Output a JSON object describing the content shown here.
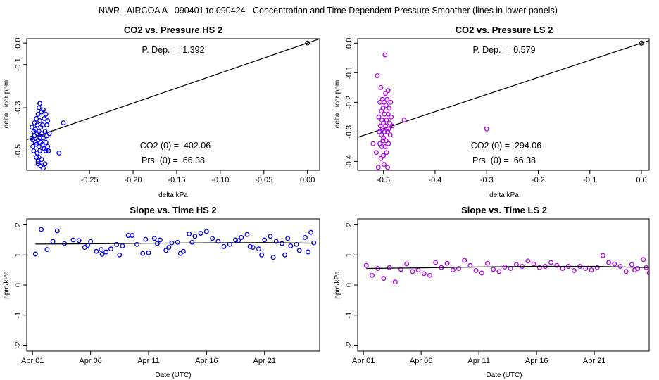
{
  "figure_title": "NWR   AIRCOA A   090401 to 090424   Concentration and Time Dependent Pressure Smoother (lines in lower panels)",
  "colors": {
    "hs": "#0000ee",
    "ls": "#b000ee",
    "line": "#000000"
  },
  "panels": {
    "hs_pressure": {
      "title": "CO2 vs. Pressure HS 2",
      "xlabel": "delta kPa",
      "ylabel": "delta Licor ppm",
      "p_dep": "P. Dep. =  1.392",
      "co2_0": "CO2 (0) =  402.06",
      "prs_0": "Prs. (0) =  66.38",
      "xticks": [
        "-0.25",
        "-0.20",
        "-0.15",
        "-0.10",
        "-0.05",
        "0.00"
      ],
      "yticks": [
        "0.0",
        "-0.1",
        "-0.3",
        "-0.5"
      ]
    },
    "ls_pressure": {
      "title": "CO2 vs. Pressure LS 2",
      "xlabel": "delta kPa",
      "ylabel": "delta Licor ppm",
      "p_dep": "P. Dep. =  0.579",
      "co2_0": "CO2 (0) =  294.06",
      "prs_0": "Prs. (0) =  66.38",
      "xticks": [
        "-0.5",
        "-0.4",
        "-0.3",
        "-0.2",
        "-0.1",
        "0.0"
      ],
      "yticks": [
        "0.0",
        "-0.1",
        "-0.2",
        "-0.3",
        "-0.4"
      ]
    },
    "hs_slope": {
      "title": "Slope vs. Time HS 2",
      "xlabel": "Date (UTC)",
      "ylabel": "ppm/kPa",
      "xticks": [
        "Apr 01",
        "Apr 06",
        "Apr 11",
        "Apr 16",
        "Apr 21"
      ],
      "yticks": [
        "-2",
        "-1",
        "0",
        "1",
        "2"
      ]
    },
    "ls_slope": {
      "title": "Slope vs. Time LS 2",
      "xlabel": "Date (UTC)",
      "ylabel": "ppm/kPa",
      "xticks": [
        "Apr 01",
        "Apr 06",
        "Apr 11",
        "Apr 16",
        "Apr 21"
      ],
      "yticks": [
        "-2",
        "-1",
        "0",
        "1",
        "2"
      ]
    }
  },
  "chart_data": [
    {
      "type": "scatter",
      "title": "CO2 vs. Pressure HS 2",
      "xlabel": "delta kPa",
      "ylabel": "delta Licor ppm",
      "xlim": [
        -0.322,
        0.014
      ],
      "ylim": [
        -0.59,
        0.02
      ],
      "points": [
        [
          -0.316,
          -0.44
        ],
        [
          -0.316,
          -0.39
        ],
        [
          -0.315,
          -0.48
        ],
        [
          -0.315,
          -0.45
        ],
        [
          -0.314,
          -0.41
        ],
        [
          -0.314,
          -0.5
        ],
        [
          -0.313,
          -0.37
        ],
        [
          -0.313,
          -0.43
        ],
        [
          -0.312,
          -0.46
        ],
        [
          -0.312,
          -0.4
        ],
        [
          -0.311,
          -0.35
        ],
        [
          -0.311,
          -0.47
        ],
        [
          -0.311,
          -0.53
        ],
        [
          -0.31,
          -0.42
        ],
        [
          -0.31,
          -0.38
        ],
        [
          -0.31,
          -0.51
        ],
        [
          -0.309,
          -0.55
        ],
        [
          -0.309,
          -0.33
        ],
        [
          -0.309,
          -0.45
        ],
        [
          -0.309,
          -0.56
        ],
        [
          -0.308,
          -0.3
        ],
        [
          -0.308,
          -0.41
        ],
        [
          -0.308,
          -0.48
        ],
        [
          -0.308,
          -0.53
        ],
        [
          -0.307,
          -0.28
        ],
        [
          -0.307,
          -0.36
        ],
        [
          -0.307,
          -0.44
        ],
        [
          -0.307,
          -0.5
        ],
        [
          -0.306,
          -0.57
        ],
        [
          -0.306,
          -0.39
        ],
        [
          -0.306,
          -0.46
        ],
        [
          -0.305,
          -0.32
        ],
        [
          -0.305,
          -0.42
        ],
        [
          -0.305,
          -0.54
        ],
        [
          -0.304,
          -0.47
        ],
        [
          -0.304,
          -0.38
        ],
        [
          -0.303,
          -0.31
        ],
        [
          -0.303,
          -0.44
        ],
        [
          -0.303,
          -0.58
        ],
        [
          -0.302,
          -0.49
        ],
        [
          -0.302,
          -0.35
        ],
        [
          -0.301,
          -0.41
        ],
        [
          -0.301,
          -0.56
        ],
        [
          -0.3,
          -0.33
        ],
        [
          -0.3,
          -0.46
        ],
        [
          -0.3,
          -0.5
        ],
        [
          -0.299,
          -0.38
        ],
        [
          -0.299,
          -0.43
        ],
        [
          -0.298,
          -0.48
        ],
        [
          -0.298,
          -0.36
        ],
        [
          -0.297,
          -0.5
        ],
        [
          -0.296,
          -0.42
        ],
        [
          -0.285,
          -0.51
        ],
        [
          -0.28,
          -0.37
        ]
      ],
      "fit_line": {
        "slope": 1.392,
        "intercept": 0
      },
      "reference_point": [
        0,
        0
      ],
      "annotations": [
        "P. Dep. =  1.392",
        "CO2 (0) =  402.06",
        "Prs. (0) =  66.38"
      ]
    },
    {
      "type": "scatter",
      "title": "CO2 vs. Pressure LS 2",
      "xlabel": "delta kPa",
      "ylabel": "delta Licor ppm",
      "xlim": [
        -0.55,
        0.015
      ],
      "ylim": [
        -0.43,
        0.015
      ],
      "points": [
        [
          -0.52,
          -0.34
        ],
        [
          -0.514,
          -0.37
        ],
        [
          -0.512,
          -0.11
        ],
        [
          -0.51,
          -0.42
        ],
        [
          -0.509,
          -0.25
        ],
        [
          -0.508,
          -0.3
        ],
        [
          -0.507,
          -0.2
        ],
        [
          -0.507,
          -0.34
        ],
        [
          -0.506,
          -0.28
        ],
        [
          -0.505,
          -0.15
        ],
        [
          -0.505,
          -0.39
        ],
        [
          -0.504,
          -0.23
        ],
        [
          -0.504,
          -0.31
        ],
        [
          -0.503,
          -0.26
        ],
        [
          -0.503,
          -0.35
        ],
        [
          -0.502,
          -0.19
        ],
        [
          -0.502,
          -0.29
        ],
        [
          -0.501,
          -0.33
        ],
        [
          -0.501,
          -0.22
        ],
        [
          -0.5,
          -0.27
        ],
        [
          -0.5,
          -0.32
        ],
        [
          -0.5,
          -0.38
        ],
        [
          -0.499,
          -0.2
        ],
        [
          -0.499,
          -0.41
        ],
        [
          -0.498,
          -0.24
        ],
        [
          -0.498,
          -0.3
        ],
        [
          -0.497,
          -0.04
        ],
        [
          -0.497,
          -0.35
        ],
        [
          -0.496,
          -0.17
        ],
        [
          -0.496,
          -0.28
        ],
        [
          -0.495,
          -0.21
        ],
        [
          -0.495,
          -0.33
        ],
        [
          -0.494,
          -0.26
        ],
        [
          -0.494,
          -0.37
        ],
        [
          -0.493,
          -0.19
        ],
        [
          -0.492,
          -0.3
        ],
        [
          -0.492,
          -0.42
        ],
        [
          -0.491,
          -0.16
        ],
        [
          -0.491,
          -0.24
        ],
        [
          -0.49,
          -0.29
        ],
        [
          -0.49,
          -0.34
        ],
        [
          -0.489,
          -0.22
        ],
        [
          -0.488,
          -0.27
        ],
        [
          -0.487,
          -0.31
        ],
        [
          -0.486,
          -0.2
        ],
        [
          -0.485,
          -0.25
        ],
        [
          -0.483,
          -0.28
        ],
        [
          -0.46,
          -0.26
        ],
        [
          -0.3,
          -0.29
        ]
      ],
      "fit_line": {
        "slope": 0.579,
        "intercept": 0
      },
      "reference_point": [
        0,
        0
      ],
      "annotations": [
        "P. Dep. =  0.579",
        "CO2 (0) =  294.06",
        "Prs. (0) =  66.38"
      ]
    },
    {
      "type": "scatter",
      "title": "Slope vs. Time HS 2",
      "xlabel": "Date (UTC)",
      "ylabel": "ppm/kPa",
      "x_axis": "date",
      "x_ticks": [
        "Apr 01",
        "Apr 06",
        "Apr 11",
        "Apr 16",
        "Apr 21"
      ],
      "xlim": [
        "2009-03-31 12:00",
        "2009-04-25 18:00"
      ],
      "ylim": [
        -2.2,
        2.2
      ],
      "points": [
        [
          "2009-04-01 06:00",
          1.03
        ],
        [
          "2009-04-01 18:00",
          1.85
        ],
        [
          "2009-04-02 06:00",
          1.18
        ],
        [
          "2009-04-02 18:00",
          1.45
        ],
        [
          "2009-04-03 03:00",
          1.8
        ],
        [
          "2009-04-03 18:00",
          1.38
        ],
        [
          "2009-04-04 12:00",
          1.5
        ],
        [
          "2009-04-05 00:00",
          1.48
        ],
        [
          "2009-04-05 12:00",
          1.25
        ],
        [
          "2009-04-06 00:00",
          1.45
        ],
        [
          "2009-04-06 12:00",
          1.12
        ],
        [
          "2009-04-06 22:00",
          1.18
        ],
        [
          "2009-04-07 08:00",
          1.1
        ],
        [
          "2009-04-07 18:00",
          1.2
        ],
        [
          "2009-04-08 06:00",
          1.35
        ],
        [
          "2009-04-08 18:00",
          1.3
        ],
        [
          "2009-04-09 06:00",
          1.65
        ],
        [
          "2009-04-09 14:00",
          1.65
        ],
        [
          "2009-04-10 00:00",
          1.35
        ],
        [
          "2009-04-10 12:00",
          1.05
        ],
        [
          "2009-04-11 00:00",
          1.07
        ],
        [
          "2009-04-11 12:00",
          1.55
        ],
        [
          "2009-04-12 00:00",
          1.5
        ],
        [
          "2009-04-12 12:00",
          1.15
        ],
        [
          "2009-04-13 00:00",
          1.4
        ],
        [
          "2009-04-13 12:00",
          1.42
        ],
        [
          "2009-04-14 00:00",
          1.12
        ],
        [
          "2009-04-14 12:00",
          1.7
        ],
        [
          "2009-04-15 00:00",
          1.62
        ],
        [
          "2009-04-15 12:00",
          1.72
        ],
        [
          "2009-04-16 00:00",
          1.78
        ],
        [
          "2009-04-16 12:00",
          1.55
        ],
        [
          "2009-04-17 00:00",
          1.45
        ],
        [
          "2009-04-17 12:00",
          1.28
        ],
        [
          "2009-04-18 00:00",
          1.35
        ],
        [
          "2009-04-18 12:00",
          1.5
        ],
        [
          "2009-04-19 00:00",
          1.58
        ],
        [
          "2009-04-19 12:00",
          1.68
        ],
        [
          "2009-04-20 00:00",
          1.25
        ],
        [
          "2009-04-20 12:00",
          1.2
        ],
        [
          "2009-04-21 00:00",
          1.5
        ],
        [
          "2009-04-21 12:00",
          1.62
        ],
        [
          "2009-04-22 00:00",
          1.45
        ],
        [
          "2009-04-22 12:00",
          1.38
        ],
        [
          "2009-04-23 00:00",
          1.55
        ],
        [
          "2009-04-23 18:00",
          1.35
        ],
        [
          "2009-04-24 12:00",
          1.58
        ],
        [
          "2009-04-25 06:00",
          1.4
        ],
        [
          "2009-04-19 18:00",
          1.28
        ],
        [
          "2009-04-18 18:00",
          1.48
        ],
        [
          "2009-04-14 18:00",
          1.42
        ],
        [
          "2009-04-13 18:00",
          1.05
        ],
        [
          "2009-04-12 18:00",
          1.25
        ],
        [
          "2009-04-11 18:00",
          1.38
        ],
        [
          "2009-04-10 18:00",
          1.52
        ],
        [
          "2009-04-08 12:00",
          1.0
        ],
        [
          "2009-04-07 00:00",
          1.02
        ],
        [
          "2009-04-05 18:00",
          1.32
        ],
        [
          "2009-04-22 18:00",
          1.0
        ],
        [
          "2009-04-23 06:00",
          1.3
        ],
        [
          "2009-04-24 00:00",
          1.15
        ],
        [
          "2009-04-24 18:00",
          1.1
        ],
        [
          "2009-04-25 00:00",
          1.75
        ],
        [
          "2009-04-21 18:00",
          0.92
        ],
        [
          "2009-04-20 18:00",
          1.0
        ]
      ],
      "smoother": [
        [
          "2009-04-01 06:00",
          1.36
        ],
        [
          "2009-04-06 00:00",
          1.37
        ],
        [
          "2009-04-11 00:00",
          1.39
        ],
        [
          "2009-04-16 00:00",
          1.4
        ],
        [
          "2009-04-21 00:00",
          1.41
        ],
        [
          "2009-04-25 06:00",
          1.39
        ]
      ]
    },
    {
      "type": "scatter",
      "title": "Slope vs. Time LS 2",
      "xlabel": "Date (UTC)",
      "ylabel": "ppm/kPa",
      "x_axis": "date",
      "x_ticks": [
        "Apr 01",
        "Apr 06",
        "Apr 11",
        "Apr 16",
        "Apr 21"
      ],
      "xlim": [
        "2009-03-31 12:00",
        "2009-04-25 18:00"
      ],
      "ylim": [
        -2.2,
        2.2
      ],
      "points": [
        [
          "2009-04-01 06:00",
          0.65
        ],
        [
          "2009-04-01 18:00",
          0.32
        ],
        [
          "2009-04-02 06:00",
          0.55
        ],
        [
          "2009-04-02 18:00",
          0.22
        ],
        [
          "2009-04-03 06:00",
          0.58
        ],
        [
          "2009-04-03 18:00",
          0.1
        ],
        [
          "2009-04-04 06:00",
          0.52
        ],
        [
          "2009-04-04 18:00",
          0.7
        ],
        [
          "2009-04-05 06:00",
          0.45
        ],
        [
          "2009-04-05 18:00",
          0.5
        ],
        [
          "2009-04-06 06:00",
          0.38
        ],
        [
          "2009-04-06 18:00",
          0.32
        ],
        [
          "2009-04-07 06:00",
          0.75
        ],
        [
          "2009-04-07 18:00",
          0.58
        ],
        [
          "2009-04-08 06:00",
          0.72
        ],
        [
          "2009-04-08 18:00",
          0.5
        ],
        [
          "2009-04-09 06:00",
          0.55
        ],
        [
          "2009-04-09 18:00",
          0.82
        ],
        [
          "2009-04-10 06:00",
          0.65
        ],
        [
          "2009-04-10 18:00",
          0.48
        ],
        [
          "2009-04-11 06:00",
          0.4
        ],
        [
          "2009-04-11 18:00",
          0.72
        ],
        [
          "2009-04-12 06:00",
          0.52
        ],
        [
          "2009-04-12 18:00",
          0.45
        ],
        [
          "2009-04-13 06:00",
          0.6
        ],
        [
          "2009-04-13 18:00",
          0.55
        ],
        [
          "2009-04-14 06:00",
          0.68
        ],
        [
          "2009-04-14 18:00",
          0.62
        ],
        [
          "2009-04-15 06:00",
          0.8
        ],
        [
          "2009-04-15 18:00",
          0.7
        ],
        [
          "2009-04-16 06:00",
          0.58
        ],
        [
          "2009-04-16 18:00",
          0.62
        ],
        [
          "2009-04-17 06:00",
          0.75
        ],
        [
          "2009-04-17 18:00",
          0.65
        ],
        [
          "2009-04-18 06:00",
          0.55
        ],
        [
          "2009-04-18 18:00",
          0.62
        ],
        [
          "2009-04-19 06:00",
          0.48
        ],
        [
          "2009-04-19 18:00",
          0.62
        ],
        [
          "2009-04-20 06:00",
          0.55
        ],
        [
          "2009-04-20 18:00",
          0.5
        ],
        [
          "2009-04-21 06:00",
          0.58
        ],
        [
          "2009-04-21 18:00",
          0.98
        ],
        [
          "2009-04-22 06:00",
          0.75
        ],
        [
          "2009-04-22 18:00",
          0.7
        ],
        [
          "2009-04-23 06:00",
          0.62
        ],
        [
          "2009-04-23 18:00",
          0.45
        ],
        [
          "2009-04-24 06:00",
          0.68
        ],
        [
          "2009-04-24 18:00",
          0.55
        ],
        [
          "2009-04-25 06:00",
          0.85
        ],
        [
          "2009-04-25 12:00",
          0.58
        ],
        [
          "2009-04-25 18:00",
          0.4
        ],
        [
          "2009-04-24 12:00",
          0.5
        ]
      ],
      "smoother": [
        [
          "2009-04-01 06:00",
          0.55
        ],
        [
          "2009-04-06 00:00",
          0.57
        ],
        [
          "2009-04-11 00:00",
          0.6
        ],
        [
          "2009-04-16 00:00",
          0.62
        ],
        [
          "2009-04-21 00:00",
          0.62
        ],
        [
          "2009-04-25 18:00",
          0.58
        ]
      ]
    }
  ]
}
